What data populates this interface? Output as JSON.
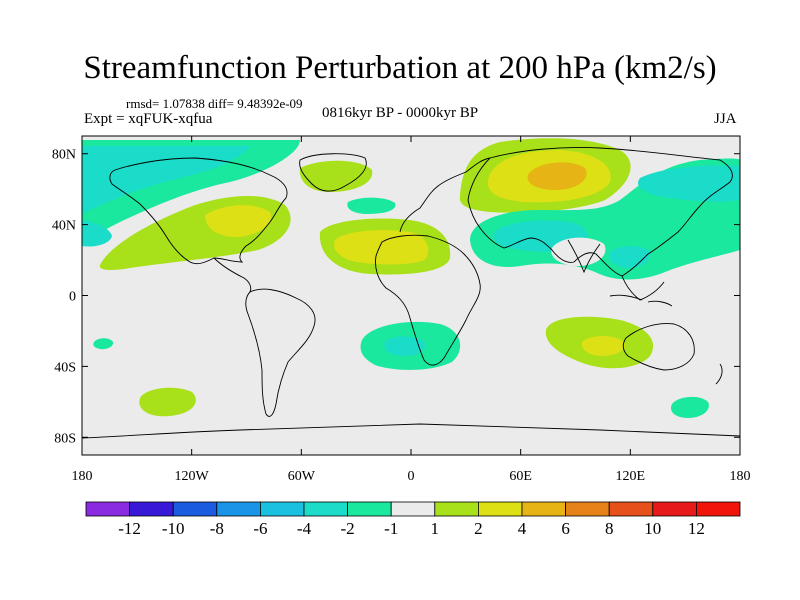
{
  "title": "Streamfunction Perturbation at 200 hPa (km2/s)",
  "stats_text": "rmsd= 1.07838 diff= 9.48392e-09",
  "expt_text": "Expt = xqFUK-xqfua",
  "period_text": "0816kyr BP - 0000kyr BP",
  "season_text": "JJA",
  "axes": {
    "x_ticks": [
      {
        "value": -180,
        "label": "180"
      },
      {
        "value": -120,
        "label": "120W"
      },
      {
        "value": -60,
        "label": "60W"
      },
      {
        "value": 0,
        "label": "0"
      },
      {
        "value": 60,
        "label": "60E"
      },
      {
        "value": 120,
        "label": "120E"
      },
      {
        "value": 180,
        "label": "180"
      }
    ],
    "y_ticks": [
      {
        "value": 80,
        "label": "80N"
      },
      {
        "value": 40,
        "label": "40N"
      },
      {
        "value": 0,
        "label": "0"
      },
      {
        "value": -40,
        "label": "40S"
      },
      {
        "value": -80,
        "label": "80S"
      }
    ],
    "lon_range": [
      -180,
      180
    ],
    "lat_range": [
      -90,
      90
    ]
  },
  "colorbar": {
    "labels": [
      "-12",
      "-10",
      "-8",
      "-6",
      "-4",
      "-2",
      "-1",
      "1",
      "2",
      "4",
      "6",
      "8",
      "10",
      "12"
    ],
    "colors": [
      "#8a2be2",
      "#3a18d8",
      "#1a5be0",
      "#1a94e6",
      "#1ac0e0",
      "#1adcc8",
      "#1ae89e",
      "#ebebeb",
      "#a8e01a",
      "#dce014",
      "#e6b414",
      "#e6821a",
      "#e6501a",
      "#e61a1a",
      "#f0140a"
    ]
  },
  "colors": {
    "background_field": "#ebebeb",
    "coast": "#000000"
  }
}
